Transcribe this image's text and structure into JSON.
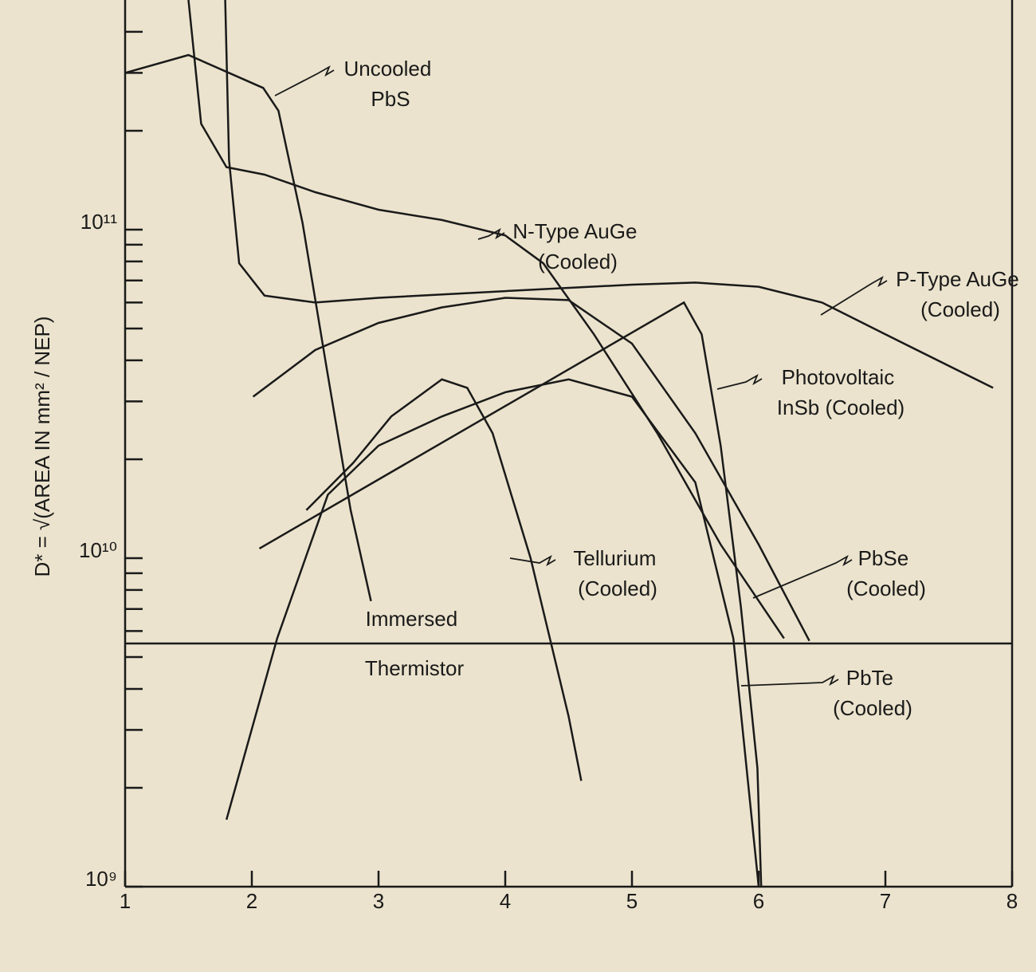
{
  "chart_data": {
    "type": "line",
    "ylabel": "D* = √(AREA IN mm² / NEP)",
    "log_y": true,
    "color": "#1a1a1a",
    "xlim": [
      1,
      8
    ],
    "xticks": [
      1,
      2,
      3,
      4,
      5,
      6,
      7,
      8
    ],
    "ylim": [
      1000000000.0,
      500000000000.0
    ],
    "yticks": [
      {
        "value": 1000000000.0,
        "label": "10⁹"
      },
      {
        "value": 10000000000.0,
        "label": "10¹⁰"
      },
      {
        "value": 100000000000.0,
        "label": "10¹¹"
      }
    ],
    "yminorticks": [
      2000000000.0,
      3000000000.0,
      4000000000.0,
      5000000000.0,
      6000000000.0,
      7000000000.0,
      8000000000.0,
      9000000000.0,
      20000000000.0,
      30000000000.0,
      40000000000.0,
      50000000000.0,
      60000000000.0,
      70000000000.0,
      80000000000.0,
      90000000000.0,
      200000000000.0,
      300000000000.0,
      400000000000.0
    ],
    "series": [
      {
        "name": "Uncooled PbS",
        "x": [
          1,
          1.5,
          2.09,
          2.21,
          2.4,
          2.59,
          2.78,
          2.94
        ],
        "values": [
          300000000000.0,
          340000000000.0,
          270000000000.0,
          230000000000.0,
          105000000000.0,
          38000000000.0,
          14000000000.0,
          7400000000.0
        ]
      },
      {
        "name": "N-Type AuGe (Cooled)",
        "x": [
          1.5,
          1.6,
          1.8,
          2.1,
          2.5,
          3,
          3.5,
          4,
          4.3,
          4.7,
          5.2,
          5.7,
          6.2
        ],
        "values": [
          500000000000.0,
          210000000000.0,
          155000000000.0,
          147000000000.0,
          130000000000.0,
          115000000000.0,
          107000000000.0,
          96000000000.0,
          79000000000.0,
          48000000000.0,
          24000000000.0,
          11000000000.0,
          5700000000.0
        ]
      },
      {
        "name": "P-Type AuGe (Cooled)",
        "x": [
          1.79,
          1.82,
          1.9,
          2.1,
          2.5,
          3,
          4,
          5,
          5.5,
          6,
          6.5,
          7,
          7.85
        ],
        "values": [
          500000000000.0,
          163000000000.0,
          79000000000.0,
          63000000000.0,
          60000000000.0,
          62000000000.0,
          65000000000.0,
          68000000000.0,
          69000000000.0,
          67000000000.0,
          60000000000.0,
          48000000000.0,
          33000000000.0
        ]
      },
      {
        "name": "Photovoltaic InSb (Cooled)",
        "x": [
          2.06,
          5.41,
          5.55,
          5.7,
          5.86,
          5.99,
          6.02
        ],
        "values": [
          10700000000.0,
          60000000000.0,
          48000000000.0,
          22000000000.0,
          7100000000.0,
          2300000000.0,
          1000000000.0
        ]
      },
      {
        "name": "PbSe (Cooled)",
        "x": [
          2.01,
          2.5,
          3,
          3.5,
          4,
          4.5,
          5,
          5.5,
          6,
          6.4
        ],
        "values": [
          31000000000.0,
          43000000000.0,
          52000000000.0,
          58000000000.0,
          62000000000.0,
          61000000000.0,
          45000000000.0,
          24000000000.0,
          11000000000.0,
          5600000000.0
        ]
      },
      {
        "name": "Tellurium (Cooled)",
        "x": [
          2.43,
          2.8,
          3.1,
          3.5,
          3.7,
          3.9,
          4.2,
          4.5,
          4.6
        ],
        "values": [
          14000000000.0,
          19500000000.0,
          27000000000.0,
          35000000000.0,
          33000000000.0,
          24000000000.0,
          10000000000.0,
          3300000000.0,
          2100000000.0
        ]
      },
      {
        "name": "PbTe (Cooled)",
        "x": [
          1.8,
          2.2,
          2.6,
          3,
          3.5,
          4,
          4.5,
          5,
          5.5,
          5.8,
          6.0
        ],
        "values": [
          1600000000.0,
          5700000000.0,
          15600000000.0,
          22000000000.0,
          27000000000.0,
          32000000000.0,
          35000000000.0,
          31000000000.0,
          17000000000.0,
          5700000000.0,
          1000000000.0
        ]
      },
      {
        "name": "Immersed Thermistor",
        "x": [
          1,
          8
        ],
        "values": [
          5500000000.0,
          5500000000.0
        ]
      }
    ]
  }
}
